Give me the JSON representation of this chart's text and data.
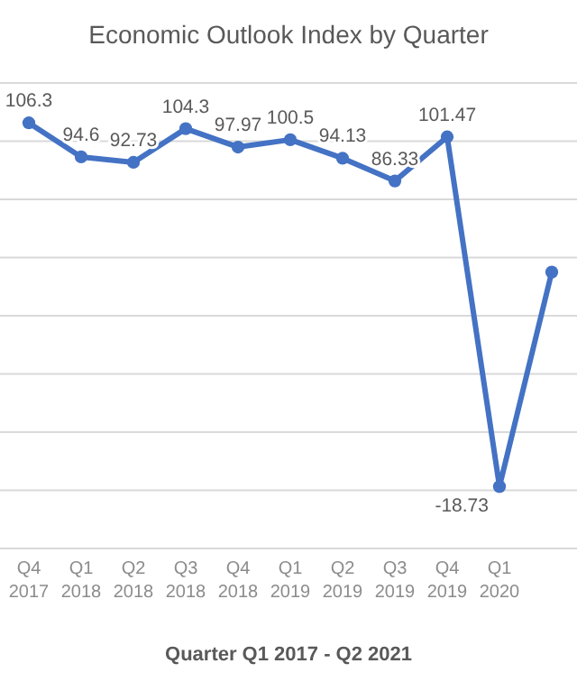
{
  "chart_data": {
    "type": "line",
    "title": "Economic Outlook Index by Quarter",
    "xlabel": "Quarter Q1 2017 - Q2 2021",
    "categories": [
      "Q4 2017",
      "Q1 2018",
      "Q2 2018",
      "Q3 2018",
      "Q4 2018",
      "Q1 2019",
      "Q2 2019",
      "Q3 2019",
      "Q4 2019",
      "Q1 2020",
      null
    ],
    "series": [
      {
        "color": "#4472c4",
        "values": [
          106.3,
          94.6,
          92.73,
          104.3,
          97.97,
          100.5,
          94.13,
          86.33,
          101.47,
          -18.73,
          55
        ],
        "value_labels": [
          "106.3",
          "94.6",
          "92.73",
          "104.3",
          "97.97",
          "100.5",
          "94.13",
          "86.33",
          "101.47",
          "-18.73",
          null
        ]
      }
    ],
    "ylim": [
      -40,
      120
    ],
    "yticks": [
      {
        "value": -40,
        "label": null
      },
      {
        "value": -20,
        "label": null
      },
      {
        "value": 0,
        "label": null
      },
      {
        "value": 20,
        "label": null
      },
      {
        "value": 40,
        "label": null
      },
      {
        "value": 60,
        "label": null
      },
      {
        "value": 80,
        "label": null
      },
      {
        "value": 100,
        "label": null
      },
      {
        "value": 120,
        "label": null
      }
    ],
    "tick_labels": "x",
    "grid": "y",
    "marker": "circle",
    "line_style": "solid"
  }
}
